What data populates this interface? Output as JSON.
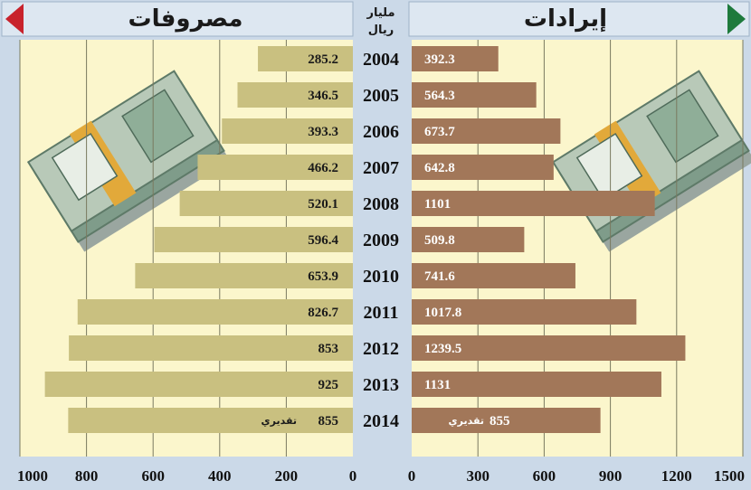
{
  "chart_data": {
    "type": "bar",
    "categories": [
      "2004",
      "2005",
      "2006",
      "2007",
      "2008",
      "2009",
      "2010",
      "2011",
      "2012",
      "2013",
      "2014"
    ],
    "unit": "مليار ريال",
    "series": [
      {
        "name": "مصروفات",
        "values": [
          285.2,
          346.5,
          393.3,
          466.2,
          520.1,
          596.4,
          653.9,
          826.7,
          853,
          925,
          855
        ],
        "labels": [
          "285.2",
          "346.5",
          "393.3",
          "466.2",
          "520.1",
          "596.4",
          "653.9",
          "826.7",
          "853",
          "925",
          "855"
        ],
        "xlim": [
          0,
          1000
        ],
        "ticks": [
          "0",
          "200",
          "400",
          "600",
          "800",
          "1000"
        ],
        "direction": "right-to-left",
        "color": "#c9c080"
      },
      {
        "name": "إيرادات",
        "values": [
          392.3,
          564.3,
          673.7,
          642.8,
          1101,
          509.8,
          741.6,
          1017.8,
          1239.5,
          1131,
          855
        ],
        "labels": [
          "392.3",
          "564.3",
          "673.7",
          "642.8",
          "1101",
          "509.8",
          "741.6",
          "1017.8",
          "1239.5",
          "1131",
          "855"
        ],
        "xlim": [
          0,
          1500
        ],
        "ticks": [
          "0",
          "300",
          "600",
          "900",
          "1200",
          "1500"
        ],
        "direction": "left-to-right",
        "color": "#a27759"
      }
    ],
    "estimate_label": "تقديري",
    "grid": true,
    "colors": {
      "background": "#cbd9e8",
      "plot_bg": "#fbf6cc",
      "header_bg": "#dde7f1",
      "arrow_left": "#c8232c",
      "arrow_right": "#1e7a3c"
    }
  }
}
